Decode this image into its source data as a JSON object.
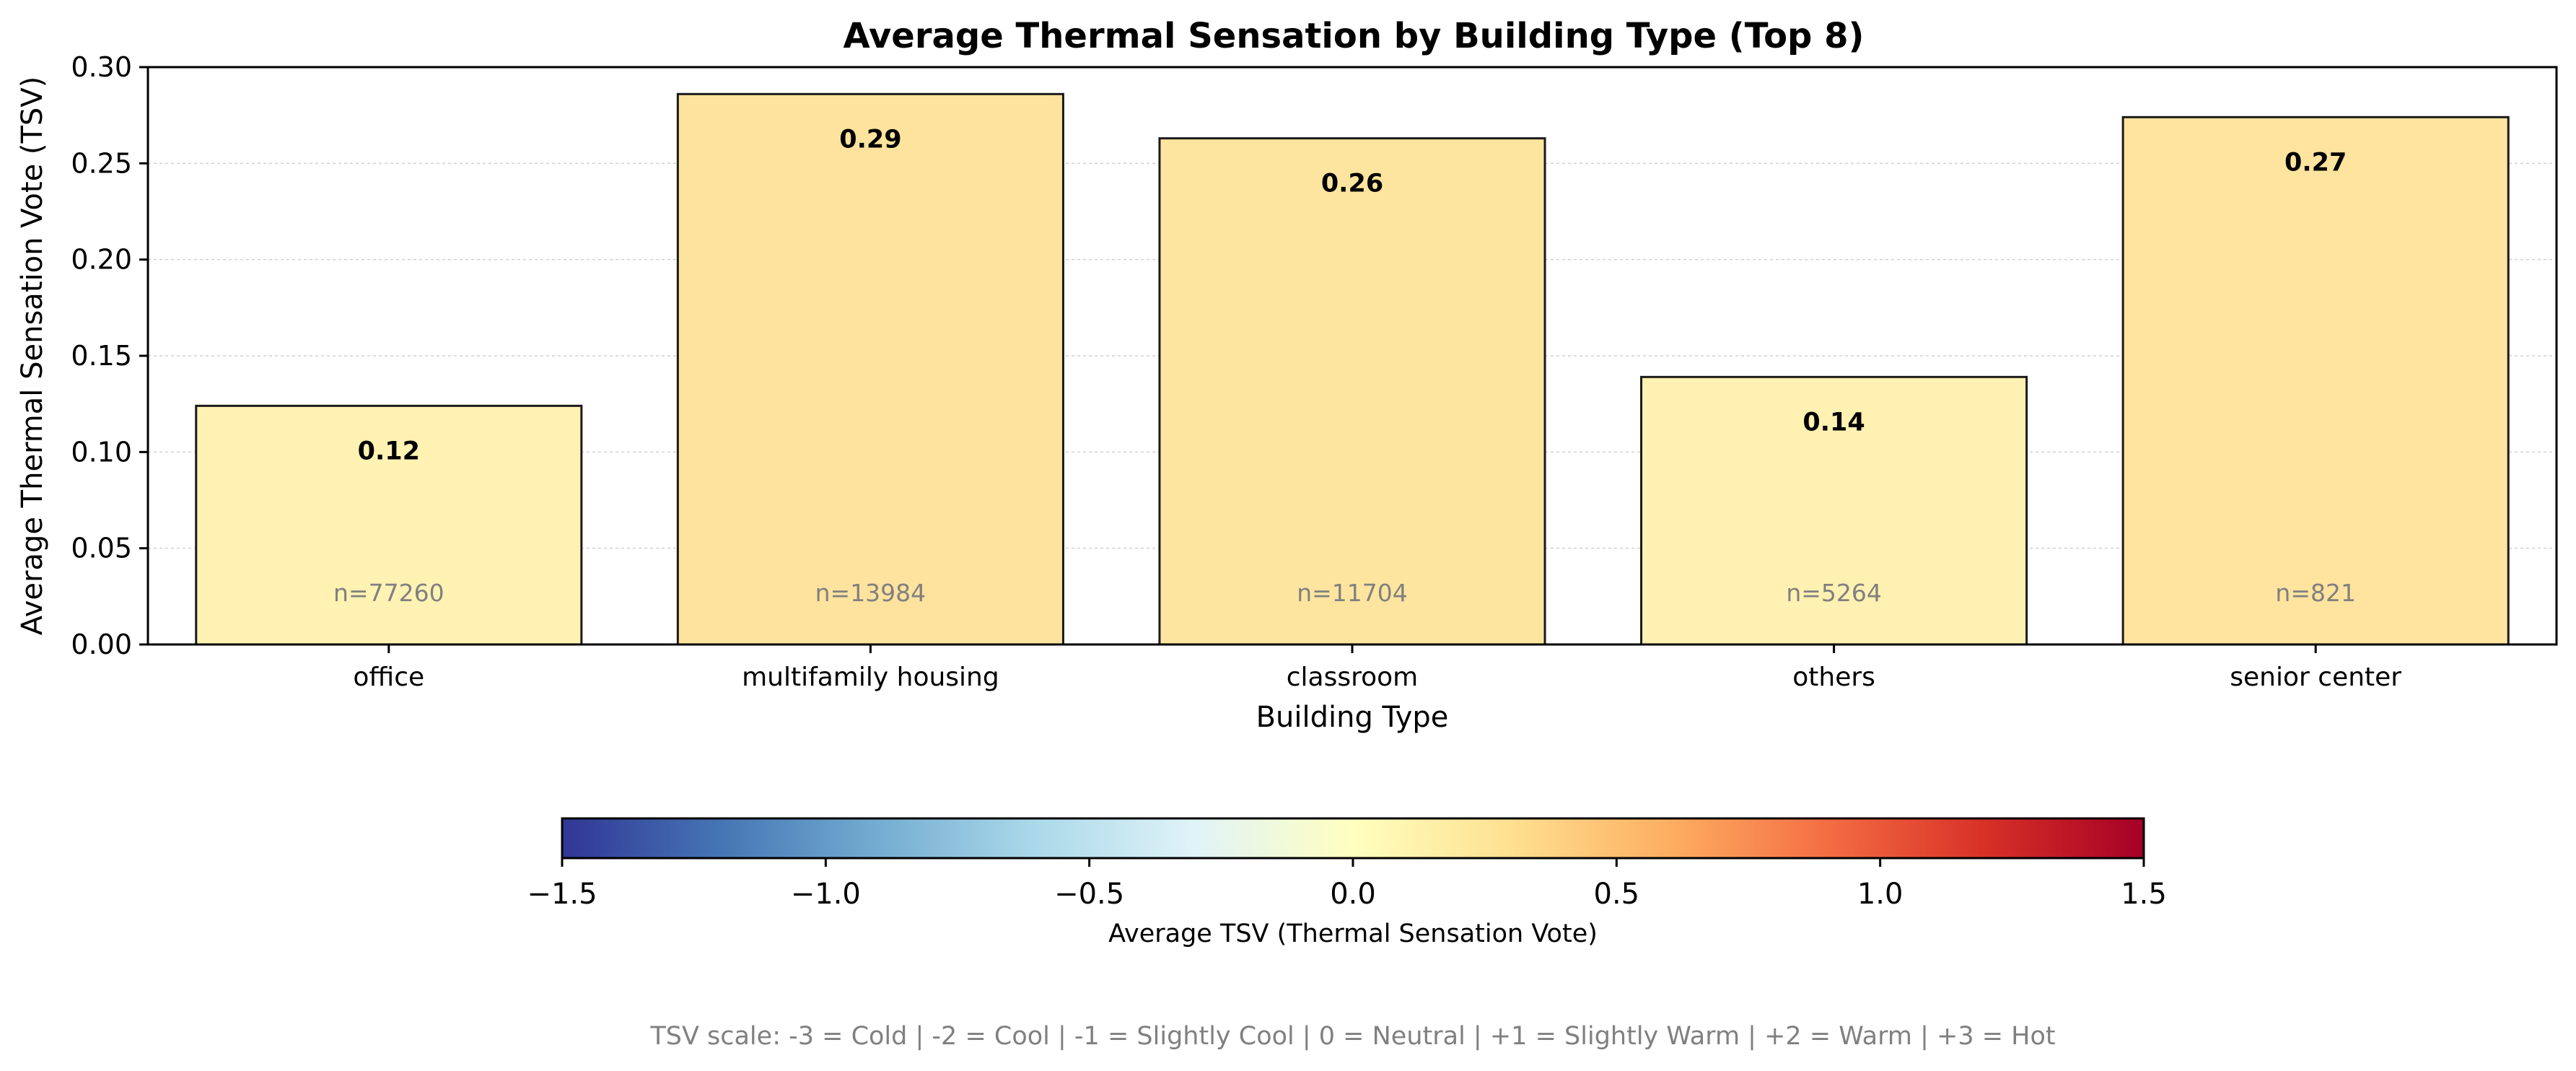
{
  "chart_data": {
    "type": "bar",
    "title": "Average Thermal Sensation by Building Type (Top 8)",
    "xlabel": "Building Type",
    "ylabel": "Average Thermal Sensation Vote (TSV)",
    "ylim": [
      0,
      0.3
    ],
    "yticks": [
      "0.00",
      "0.05",
      "0.10",
      "0.15",
      "0.20",
      "0.25",
      "0.30"
    ],
    "grid": "y",
    "categories": [
      "office",
      "multifamily housing",
      "classroom",
      "others",
      "senior center"
    ],
    "values": [
      0.124,
      0.286,
      0.263,
      0.139,
      0.274
    ],
    "value_labels": [
      "0.12",
      "0.29",
      "0.26",
      "0.14",
      "0.27"
    ],
    "counts": [
      "n=77260",
      "n=13984",
      "n=11704",
      "n=5264",
      "n=821"
    ],
    "colorbar": {
      "label": "Average TSV (Thermal Sensation Vote)",
      "range": [
        -1.5,
        1.5
      ],
      "ticks": [
        "−1.5",
        "−1.0",
        "−0.5",
        "0.0",
        "0.5",
        "1.0",
        "1.5"
      ],
      "colormap": [
        "#313695",
        "#4575b4",
        "#74add1",
        "#abd9e9",
        "#e0f3f8",
        "#ffffbf",
        "#fee090",
        "#fdae61",
        "#f46d43",
        "#d73027",
        "#a50026"
      ]
    }
  },
  "footnote": "TSV scale: -3 = Cold | -2 = Cool | -1 = Slightly Cool | 0 = Neutral | +1 = Slightly Warm | +2 = Warm | +3 = Hot",
  "colors": {
    "bar_fill": [
      "#fff2b3",
      "#fee39e",
      "#fee59f",
      "#fff1b1",
      "#fee49e"
    ],
    "bar_stroke": "#1a1a1a",
    "grid": "#d0d0d0",
    "muted_text": "#808080"
  }
}
